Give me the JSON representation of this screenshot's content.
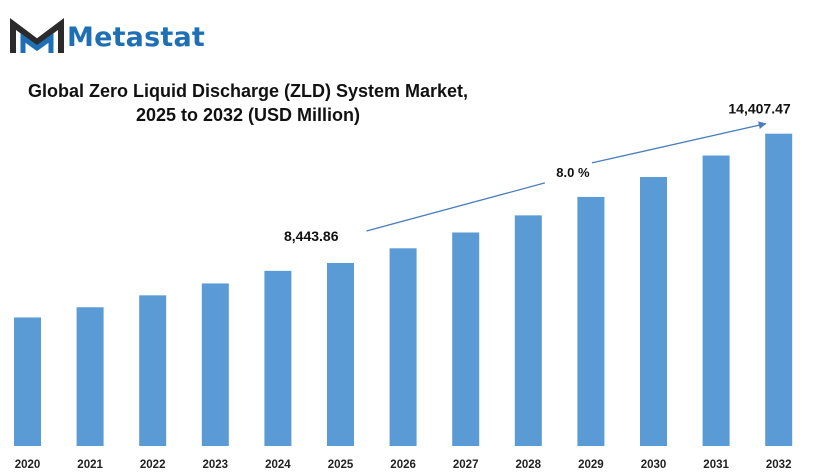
{
  "brand": {
    "name": "Metastat",
    "color": "#1f6fb5"
  },
  "chart_data": {
    "type": "bar",
    "title_line1": "Global Zero Liquid Discharge (ZLD) System Market,",
    "title_line2": "2025 to 2032 (USD Million)",
    "categories": [
      "2020",
      "2021",
      "2022",
      "2023",
      "2024",
      "2025",
      "2026",
      "2027",
      "2028",
      "2029",
      "2030",
      "2031",
      "2032"
    ],
    "values": [
      5930,
      6400,
      6950,
      7500,
      8080,
      8443.86,
      9120,
      9850,
      10640,
      11490,
      12410,
      13400,
      14407.47
    ],
    "value_labels": [
      {
        "category": "2025",
        "text": "8,443.86"
      },
      {
        "category": "2032",
        "text": "14,407.47"
      }
    ],
    "growth_annotation": "8.0 %",
    "bar_color": "#5b9bd5",
    "arrow_color": "#4a7ebb",
    "ylim": [
      0,
      15500
    ],
    "grid": false,
    "legend": "none"
  }
}
